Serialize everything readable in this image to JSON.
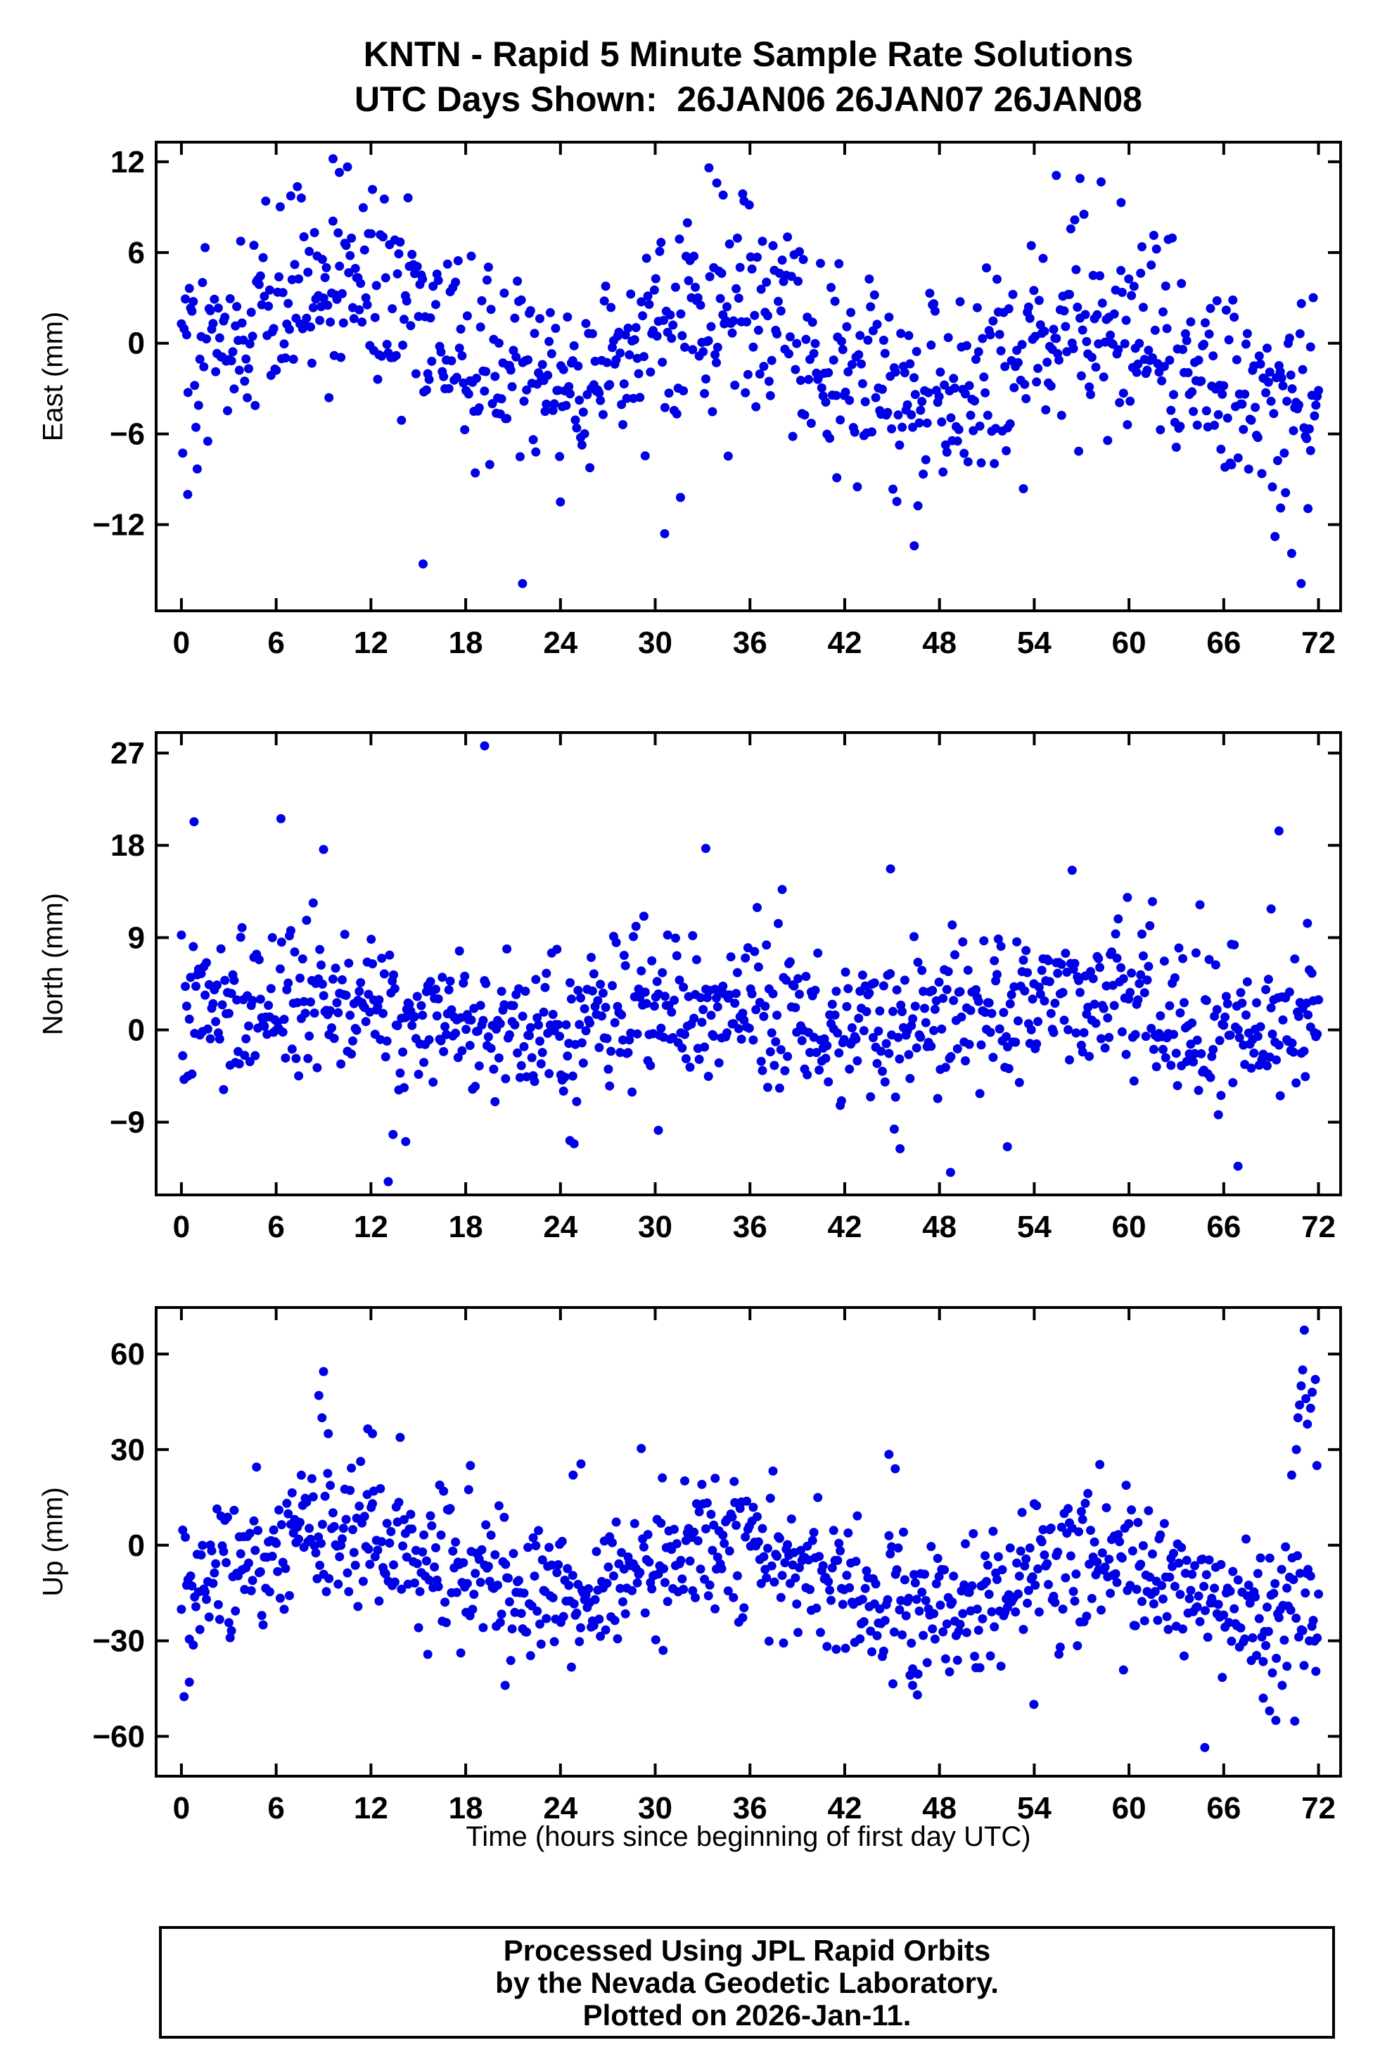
{
  "title": {
    "line1": "KNTN - Rapid 5 Minute Sample Rate Solutions",
    "line2": "UTC Days Shown:  26JAN06 26JAN07 26JAN08"
  },
  "station": "KNTN",
  "xlabel": "Time (hours since beginning of first day UTC)",
  "footer": {
    "lines": [
      "Processed Using JPL Rapid Orbits",
      "by the Nevada Geodetic Laboratory.",
      "Plotted on 2026-Jan-11."
    ]
  },
  "style": {
    "point_color": "#0000E6",
    "axis_color": "#000000",
    "background": "#FFFFFF"
  },
  "chart_data": [
    {
      "type": "scatter",
      "name": "east",
      "ylabel": "East (mm)",
      "xlim": [
        -1.6,
        73.4
      ],
      "ylim": [
        -17.7,
        13.3
      ],
      "xticks": [
        0,
        6,
        12,
        18,
        24,
        30,
        36,
        42,
        48,
        54,
        60,
        66,
        72
      ],
      "yticks": [
        -12,
        -6,
        0,
        6,
        12
      ],
      "x_range_hours": [
        0,
        72
      ],
      "sample_interval_min": 5,
      "distribution": {
        "seed": 42,
        "n": 864,
        "sigma": 3.3,
        "amp": 2.8,
        "peak_hour": 10,
        "day_offsets": [
          1.2,
          -0.6,
          -1.6
        ],
        "outlier_prob": 0.012,
        "outlier_scale": 2.2
      },
      "notable_points": [
        [
          0.4,
          -10.0
        ],
        [
          9.6,
          12.2
        ],
        [
          10.0,
          11.3
        ],
        [
          15.3,
          -14.6
        ],
        [
          21.6,
          -15.9
        ],
        [
          24.0,
          -10.5
        ],
        [
          30.6,
          -12.6
        ],
        [
          31.6,
          -10.2
        ],
        [
          33.4,
          11.6
        ],
        [
          33.9,
          10.6
        ],
        [
          34.3,
          9.8
        ],
        [
          41.5,
          -8.9
        ],
        [
          46.4,
          -13.4
        ],
        [
          55.4,
          11.1
        ],
        [
          56.9,
          10.9
        ],
        [
          59.5,
          9.3
        ],
        [
          69.6,
          -10.9
        ],
        [
          70.3,
          -13.9
        ],
        [
          70.9,
          -15.9
        ],
        [
          71.5,
          -7.1
        ]
      ]
    },
    {
      "type": "scatter",
      "name": "north",
      "ylabel": "North (mm)",
      "xlim": [
        -1.6,
        73.4
      ],
      "ylim": [
        -16.1,
        29.0
      ],
      "xticks": [
        0,
        6,
        12,
        18,
        24,
        30,
        36,
        42,
        48,
        54,
        60,
        66,
        72
      ],
      "yticks": [
        -9,
        0,
        9,
        18,
        27
      ],
      "x_range_hours": [
        0,
        72
      ],
      "sample_interval_min": 5,
      "distribution": {
        "seed": 7,
        "n": 864,
        "sigma": 3.6,
        "amp": 1.5,
        "peak_hour": 8,
        "day_offsets": [
          1.6,
          1.0,
          2.0
        ],
        "outlier_prob": 0.01,
        "outlier_scale": 2.2
      },
      "notable_points": [
        [
          0.8,
          20.3
        ],
        [
          6.3,
          20.6
        ],
        [
          9.0,
          17.6
        ],
        [
          13.4,
          -10.2
        ],
        [
          14.2,
          -10.9
        ],
        [
          19.2,
          27.7
        ],
        [
          24.6,
          -10.8
        ],
        [
          30.2,
          -9.8
        ],
        [
          33.2,
          17.7
        ],
        [
          44.9,
          15.7
        ],
        [
          45.5,
          -11.6
        ],
        [
          48.7,
          -13.9
        ],
        [
          52.3,
          -11.4
        ],
        [
          66.9,
          -13.3
        ],
        [
          69.0,
          11.8
        ],
        [
          69.5,
          19.4
        ],
        [
          71.3,
          10.4
        ]
      ]
    },
    {
      "type": "scatter",
      "name": "up",
      "ylabel": "Up (mm)",
      "xlim": [
        -1.6,
        73.4
      ],
      "ylim": [
        -72.5,
        74.6
      ],
      "xticks": [
        0,
        6,
        12,
        18,
        24,
        30,
        36,
        42,
        48,
        54,
        60,
        66,
        72
      ],
      "yticks": [
        -60,
        -30,
        0,
        30,
        60
      ],
      "x_range_hours": [
        0,
        72
      ],
      "sample_interval_min": 5,
      "distribution": {
        "seed": 99,
        "n": 864,
        "sigma": 11.5,
        "amp": 9,
        "peak_hour": 10,
        "day_offsets": [
          -5,
          -9,
          -14
        ],
        "outlier_prob": 0.012,
        "outlier_scale": 1.8
      },
      "notable_points": [
        [
          0.5,
          -43.0
        ],
        [
          8.7,
          47.0
        ],
        [
          8.9,
          40.0
        ],
        [
          9.0,
          54.5
        ],
        [
          9.3,
          35.0
        ],
        [
          11.8,
          36.5
        ],
        [
          12.1,
          35.0
        ],
        [
          18.3,
          25.0
        ],
        [
          20.5,
          -44.0
        ],
        [
          24.8,
          22.0
        ],
        [
          25.3,
          25.5
        ],
        [
          30.5,
          -33.0
        ],
        [
          33.8,
          21.0
        ],
        [
          35.0,
          20.0
        ],
        [
          44.8,
          28.5
        ],
        [
          45.2,
          24.0
        ],
        [
          46.3,
          -44.0
        ],
        [
          46.6,
          -47.0
        ],
        [
          54.0,
          13.0
        ],
        [
          64.8,
          -63.5
        ],
        [
          68.5,
          -48.0
        ],
        [
          68.9,
          -52.0
        ],
        [
          69.3,
          -55.0
        ],
        [
          69.7,
          -44.0
        ],
        [
          70.0,
          -38.0
        ],
        [
          70.3,
          22.0
        ],
        [
          70.6,
          30.0
        ],
        [
          70.7,
          40.0
        ],
        [
          70.8,
          44.0
        ],
        [
          70.9,
          50.0
        ],
        [
          71.0,
          55.0
        ],
        [
          71.1,
          67.5
        ],
        [
          71.2,
          46.0
        ],
        [
          71.3,
          38.0
        ],
        [
          71.5,
          43.0
        ],
        [
          71.6,
          48.0
        ],
        [
          71.8,
          52.0
        ],
        [
          71.9,
          25.0
        ]
      ]
    }
  ]
}
